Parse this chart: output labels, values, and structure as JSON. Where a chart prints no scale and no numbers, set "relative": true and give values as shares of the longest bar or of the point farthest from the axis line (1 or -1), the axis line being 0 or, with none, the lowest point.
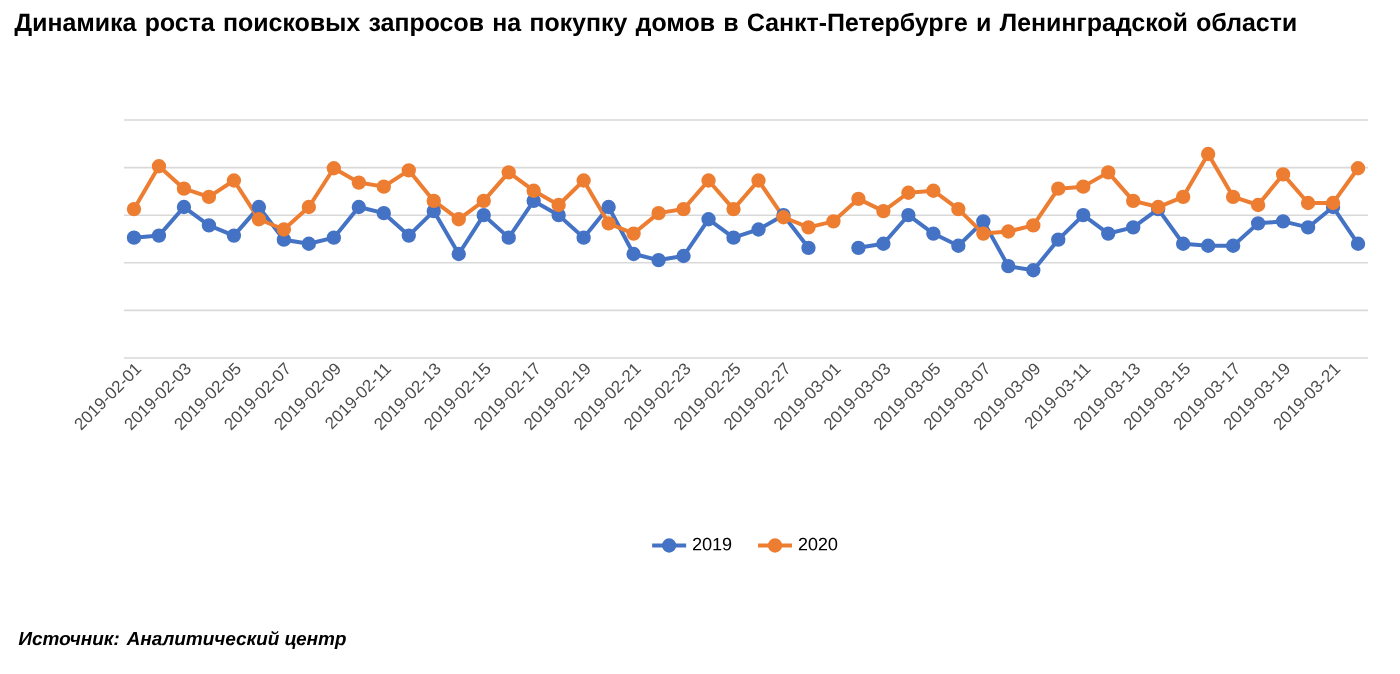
{
  "chart_data": {
    "type": "line",
    "title": "Динамика роста поисковых запросов на покупку домов в Санкт-Петербурге и Ленинградской области",
    "categories": [
      "2019-02-01",
      null,
      "2019-02-03",
      null,
      "2019-02-05",
      null,
      "2019-02-07",
      null,
      "2019-02-09",
      null,
      "2019-02-11",
      null,
      "2019-02-13",
      null,
      "2019-02-15",
      null,
      "2019-02-17",
      null,
      "2019-02-19",
      null,
      "2019-02-21",
      null,
      "2019-02-23",
      null,
      "2019-02-25",
      null,
      "2019-02-27",
      null,
      "2019-03-01",
      null,
      "2019-03-03",
      null,
      "2019-03-05",
      null,
      "2019-03-07",
      null,
      "2019-03-09",
      null,
      "2019-03-11",
      null,
      "2019-03-13",
      null,
      "2019-03-15",
      null,
      "2019-03-17",
      null,
      "2019-03-19",
      null,
      "2019-03-21",
      null
    ],
    "series": [
      {
        "name": "2019",
        "color": "#4472c4",
        "values": [
          0.59,
          0.6,
          0.74,
          0.65,
          0.6,
          0.74,
          0.58,
          0.56,
          0.59,
          0.74,
          0.71,
          0.6,
          0.72,
          0.51,
          0.7,
          0.59,
          0.77,
          0.7,
          0.59,
          0.74,
          0.51,
          0.48,
          0.5,
          0.68,
          0.59,
          0.63,
          0.7,
          0.54,
          null,
          0.54,
          0.56,
          0.7,
          0.61,
          0.55,
          0.67,
          0.45,
          0.43,
          0.58,
          0.7,
          0.61,
          0.64,
          0.73,
          0.56,
          0.55,
          0.55,
          0.66,
          0.67,
          0.64,
          0.74,
          0.56
        ]
      },
      {
        "name": "2020",
        "color": "#ed7d31",
        "values": [
          0.73,
          0.94,
          0.83,
          0.79,
          0.87,
          0.68,
          0.63,
          0.74,
          0.93,
          0.86,
          0.84,
          0.92,
          0.77,
          0.68,
          0.77,
          0.91,
          0.82,
          0.75,
          0.87,
          0.66,
          0.61,
          0.71,
          0.73,
          0.87,
          0.73,
          0.87,
          0.69,
          0.64,
          0.67,
          0.78,
          0.72,
          0.81,
          0.82,
          0.73,
          0.61,
          0.62,
          0.65,
          0.83,
          0.84,
          0.91,
          0.77,
          0.74,
          0.79,
          1.0,
          0.79,
          0.75,
          0.9,
          0.76,
          0.76,
          0.93
        ]
      }
    ],
    "relative": true,
    "grid": "y",
    "legend": "bottom",
    "marker": "circle",
    "line_style": "solid",
    "annotations": [
      "Источник: Аналитический центр"
    ]
  }
}
